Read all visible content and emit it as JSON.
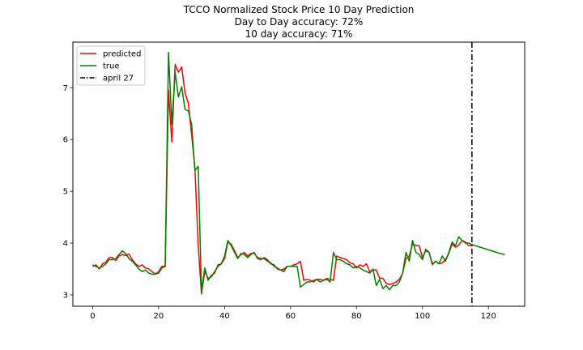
{
  "chart_data": {
    "type": "line",
    "title_lines": [
      "TCCO Normalized Stock Price 10 Day Prediction",
      "Day to Day accuracy: 72%",
      "10 day accuracy: 71%"
    ],
    "xlabel": "",
    "ylabel": "",
    "xlim": [
      -6,
      131
    ],
    "ylim": [
      2.78,
      7.88
    ],
    "x_ticks": [
      0,
      20,
      40,
      60,
      80,
      100,
      120
    ],
    "y_ticks": [
      3,
      4,
      5,
      6,
      7
    ],
    "grid": false,
    "legend_position": "top-left",
    "series": [
      {
        "name": "predicted",
        "color": "#ff0000",
        "x": [
          0,
          1,
          2,
          3,
          4,
          5,
          6,
          7,
          8,
          9,
          10,
          11,
          12,
          13,
          14,
          15,
          16,
          17,
          18,
          19,
          20,
          21,
          22,
          23,
          24,
          25,
          26,
          27,
          28,
          29,
          30,
          31,
          32,
          33,
          34,
          35,
          36,
          37,
          38,
          39,
          40,
          41,
          42,
          43,
          44,
          45,
          46,
          47,
          48,
          49,
          50,
          51,
          52,
          53,
          54,
          55,
          56,
          57,
          58,
          59,
          60,
          61,
          62,
          63,
          64,
          65,
          66,
          67,
          68,
          69,
          70,
          71,
          72,
          73,
          74,
          75,
          76,
          77,
          78,
          79,
          80,
          81,
          82,
          83,
          84,
          85,
          86,
          87,
          88,
          89,
          90,
          91,
          92,
          93,
          94,
          95,
          96,
          97,
          98,
          99,
          100,
          101,
          102,
          103,
          104,
          105,
          106,
          107,
          108,
          109,
          110,
          111,
          112,
          113,
          114,
          115
        ],
        "y": [
          3.55,
          3.58,
          3.5,
          3.6,
          3.63,
          3.72,
          3.72,
          3.66,
          3.75,
          3.78,
          3.76,
          3.79,
          3.68,
          3.6,
          3.55,
          3.58,
          3.52,
          3.5,
          3.45,
          3.4,
          3.45,
          3.55,
          3.55,
          6.95,
          5.95,
          7.45,
          7.3,
          7.4,
          6.9,
          6.7,
          6.1,
          5.45,
          3.95,
          3.02,
          3.45,
          3.32,
          3.35,
          3.45,
          3.55,
          3.6,
          3.7,
          4.02,
          3.98,
          3.85,
          3.72,
          3.78,
          3.82,
          3.75,
          3.8,
          3.8,
          3.72,
          3.7,
          3.7,
          3.65,
          3.62,
          3.55,
          3.52,
          3.48,
          3.5,
          3.55,
          3.55,
          3.58,
          3.6,
          3.65,
          3.28,
          3.3,
          3.28,
          3.25,
          3.3,
          3.3,
          3.28,
          3.32,
          3.3,
          3.28,
          3.75,
          3.72,
          3.7,
          3.68,
          3.62,
          3.6,
          3.52,
          3.58,
          3.55,
          3.6,
          3.45,
          3.48,
          3.48,
          3.32,
          3.32,
          3.22,
          3.2,
          3.22,
          3.25,
          3.3,
          3.42,
          3.7,
          3.75,
          3.98,
          3.95,
          3.95,
          3.72,
          3.85,
          3.82,
          3.58,
          3.65,
          3.6,
          3.62,
          3.68,
          3.8,
          3.98,
          3.92,
          3.96,
          4.05,
          4.02,
          3.95,
          3.96
        ]
      },
      {
        "name": "true",
        "color": "#008000",
        "x": [
          0,
          1,
          2,
          3,
          4,
          5,
          6,
          7,
          8,
          9,
          10,
          11,
          12,
          13,
          14,
          15,
          16,
          17,
          18,
          19,
          20,
          21,
          22,
          23,
          24,
          25,
          26,
          27,
          28,
          29,
          30,
          31,
          32,
          33,
          34,
          35,
          36,
          37,
          38,
          39,
          40,
          41,
          42,
          43,
          44,
          45,
          46,
          47,
          48,
          49,
          50,
          51,
          52,
          53,
          54,
          55,
          56,
          57,
          58,
          59,
          60,
          61,
          62,
          63,
          64,
          65,
          66,
          67,
          68,
          69,
          70,
          71,
          72,
          73,
          74,
          75,
          76,
          77,
          78,
          79,
          80,
          81,
          82,
          83,
          84,
          85,
          86,
          87,
          88,
          89,
          90,
          91,
          92,
          93,
          94,
          95,
          96,
          97,
          98,
          99,
          100,
          101,
          102,
          103,
          104,
          105,
          106,
          107,
          108,
          109,
          110,
          111,
          112,
          113,
          114,
          115,
          116,
          117,
          118,
          119,
          120,
          121,
          122,
          123,
          124,
          125
        ],
        "y": [
          3.58,
          3.55,
          3.52,
          3.55,
          3.6,
          3.68,
          3.68,
          3.7,
          3.78,
          3.85,
          3.8,
          3.7,
          3.65,
          3.58,
          3.5,
          3.45,
          3.48,
          3.42,
          3.4,
          3.4,
          3.42,
          3.52,
          3.55,
          7.68,
          6.3,
          7.3,
          6.82,
          7.02,
          6.58,
          6.55,
          6.3,
          5.4,
          5.48,
          3.08,
          3.52,
          3.28,
          3.38,
          3.42,
          3.58,
          3.6,
          3.75,
          4.05,
          3.95,
          3.82,
          3.7,
          3.8,
          3.78,
          3.72,
          3.78,
          3.82,
          3.7,
          3.68,
          3.72,
          3.68,
          3.6,
          3.58,
          3.5,
          3.48,
          3.45,
          3.55,
          3.55,
          3.55,
          3.55,
          3.15,
          3.2,
          3.25,
          3.25,
          3.28,
          3.3,
          3.25,
          3.28,
          3.3,
          3.25,
          3.82,
          3.68,
          3.68,
          3.65,
          3.6,
          3.58,
          3.52,
          3.55,
          3.52,
          3.48,
          3.45,
          3.42,
          3.5,
          3.18,
          3.3,
          3.12,
          3.18,
          3.1,
          3.18,
          3.18,
          3.25,
          3.42,
          3.82,
          3.65,
          4.05,
          3.82,
          3.78,
          3.68,
          3.88,
          3.82,
          3.6,
          3.65,
          3.6,
          3.75,
          3.65,
          3.82,
          4.02,
          3.95,
          4.12,
          4.05,
          4.0,
          4.0,
          3.97,
          3.95,
          3.93,
          3.91,
          3.89,
          3.87,
          3.85,
          3.83,
          3.81,
          3.79,
          3.78
        ]
      }
    ],
    "vline": {
      "name": "april 27",
      "x": 115,
      "color": "#000000",
      "style": "dashdot"
    }
  }
}
